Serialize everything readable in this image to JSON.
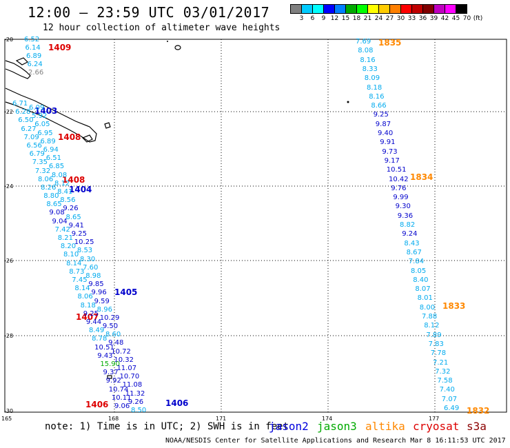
{
  "header": {
    "title": "12:00 – 23:59 UTC 03/01/2017",
    "subtitle": "12 hour collection of altimeter wave heights"
  },
  "color_scale": {
    "ticks": [
      "3",
      "6",
      "9",
      "12",
      "15",
      "18",
      "21",
      "24",
      "27",
      "30",
      "33",
      "36",
      "39",
      "42",
      "45",
      "70",
      "(ft)"
    ],
    "colors": [
      "#808080",
      "#00ccff",
      "#00ffff",
      "#0000ff",
      "#0080ff",
      "#00aa00",
      "#00ff00",
      "#ffff00",
      "#ffcc00",
      "#ff8000",
      "#ff0000",
      "#c00000",
      "#800000",
      "#c000c0",
      "#ff00ff",
      "#000000"
    ]
  },
  "axes": {
    "lat_labels": [
      "-20",
      "-22",
      "-24",
      "-26",
      "-28",
      "-30"
    ],
    "lon_labels": [
      "165",
      "168",
      "171",
      "174",
      "177"
    ]
  },
  "pass_labels": [
    {
      "text": "1409",
      "color": "#dd0000"
    },
    {
      "text": "1403",
      "color": "#0000cc"
    },
    {
      "text": "1408",
      "color": "#dd0000"
    },
    {
      "text": "1408",
      "color": "#dd0000"
    },
    {
      "text": "1404",
      "color": "#0000cc"
    },
    {
      "text": "1405",
      "color": "#0000cc"
    },
    {
      "text": "1407",
      "color": "#dd0000"
    },
    {
      "text": "1406",
      "color": "#dd0000"
    },
    {
      "text": "1406",
      "color": "#0000cc"
    },
    {
      "text": "1835",
      "color": "#ff8800"
    },
    {
      "text": "1834",
      "color": "#ff8800"
    },
    {
      "text": "1833",
      "color": "#ff8800"
    },
    {
      "text": "1832",
      "color": "#ff8800"
    }
  ],
  "track_left_a": {
    "values": [
      "6.52",
      "6.14",
      "6.89",
      "6.24",
      "2.66"
    ],
    "colors": [
      "#00aaee",
      "#00aaee",
      "#00aaee",
      "#00aaee",
      "#808080"
    ]
  },
  "track_left_b": {
    "values": [
      "6.71",
      "6.09",
      "6.28",
      "5.92",
      "6.50",
      "6.05",
      "6.27",
      "6.95",
      "7.09",
      "6.89",
      "6.56",
      "6.94",
      "6.79",
      "6.51",
      "7.35",
      "6.85",
      "7.32",
      "8.08",
      "8.06",
      "8.12",
      "8.26",
      "8.41",
      "8.80",
      "8.56",
      "8.65",
      "9.26",
      "9.08",
      "8.65",
      "9.04",
      "9.41",
      "7.42",
      "9.25",
      "8.21",
      "10.25",
      "8.20",
      "8.53",
      "8.10",
      "8.30",
      "8.14",
      "7.60",
      "8.73",
      "8.98",
      "7.45",
      "9.85",
      "8.14",
      "9.96",
      "8.06",
      "9.59",
      "8.18",
      "8.96",
      "9.25",
      "10.29",
      "9.44",
      "9.50",
      "8.49",
      "8.60",
      "8.78",
      "9.48",
      "10.51",
      "10.72",
      "9.43",
      "10.32",
      "15.90",
      "11.07",
      "9.37",
      "10.70",
      "9.92",
      "11.08",
      "10.74",
      "11.32",
      "10.11",
      "9.26",
      "9.06",
      "8.50"
    ]
  },
  "track_right": {
    "values": [
      "7.69",
      "8.08",
      "8.16",
      "8.33",
      "8.09",
      "8.18",
      "8.16",
      "8.66",
      "9.25",
      "9.87",
      "9.40",
      "9.91",
      "9.73",
      "9.17",
      "10.51",
      "10.42",
      "9.76",
      "9.99",
      "9.30",
      "9.36",
      "8.82",
      "9.24",
      "8.43",
      "8.67",
      "7.84",
      "8.05",
      "8.40",
      "8.07",
      "8.01",
      "8.00",
      "7.88",
      "8.12",
      "7.89",
      "7.83",
      "7.78",
      "7.21",
      "7.32",
      "7.58",
      "7.40",
      "7.07",
      "6.49"
    ]
  },
  "footer": {
    "note": "note: 1) Time is in UTC; 2) SWH is in feet",
    "legend": [
      {
        "text": "jason2",
        "color": "#0000dd"
      },
      {
        "text": "jason3",
        "color": "#00aa00"
      },
      {
        "text": "altika",
        "color": "#ff8800"
      },
      {
        "text": "cryosat",
        "color": "#dd0000"
      },
      {
        "text": "s3a",
        "color": "#8b0000"
      }
    ],
    "credit": "NOAA/NESDIS Center for Satellite Applications and Research    Mar  8 16:11:53 UTC 2017"
  }
}
